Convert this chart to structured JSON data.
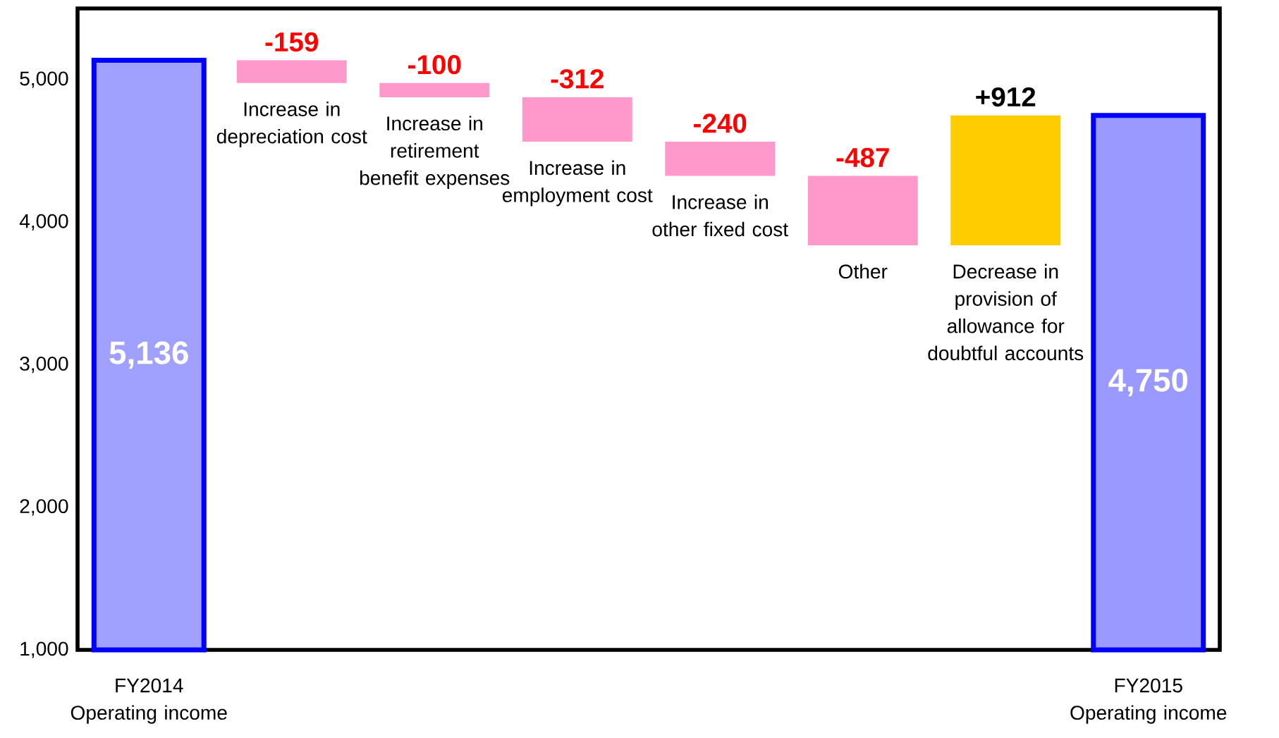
{
  "chart_data": {
    "type": "bar",
    "categories": [
      "FY2014 Operating income",
      "Increase in depreciation cost",
      "Increase in retirement benefit expenses",
      "Increase in employment cost",
      "Increase in other fixed cost",
      "Other",
      "Decrease in provision of allowance for doubtful accounts",
      "FY2015 Operating income"
    ],
    "values": [
      5136,
      -159,
      -100,
      -312,
      -240,
      -487,
      912,
      4750
    ],
    "base": [
      null,
      5136,
      4977,
      4877,
      4565,
      4325,
      3838,
      null
    ],
    "colors": [
      "#a0a0ff",
      "#ff99cc",
      "#ff99cc",
      "#ff99cc",
      "#ff99cc",
      "#ff99cc",
      "#ffcc00",
      "#9999ff"
    ],
    "value_labels": [
      "5,136",
      "-159",
      "-100",
      "-312",
      "-240",
      "-487",
      "+912",
      "4,750"
    ],
    "ylim": [
      1000,
      5500
    ],
    "yticks": [
      {
        "value": 1000,
        "label": "1,000"
      },
      {
        "value": 2000,
        "label": "2,000"
      },
      {
        "value": 3000,
        "label": "3,000"
      },
      {
        "value": 4000,
        "label": "4,000"
      },
      {
        "value": 5000,
        "label": "5,000"
      }
    ]
  }
}
